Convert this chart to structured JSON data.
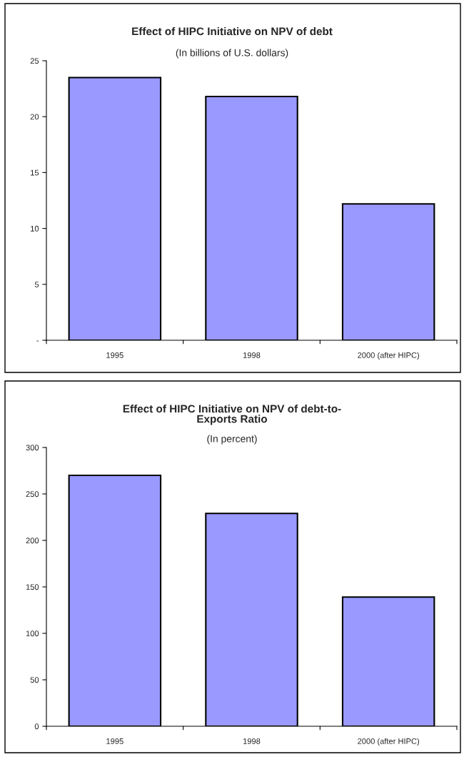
{
  "chart_data": [
    {
      "type": "bar",
      "title": "Effect of HIPC Initiative on NPV of debt",
      "subtitle": "(In billions of U.S. dollars)",
      "categories": [
        "1995",
        "1998",
        "2000 (after HIPC)"
      ],
      "values": [
        23.5,
        21.8,
        12.2
      ],
      "color": "#9999ff",
      "ylim": [
        0,
        25
      ],
      "yticks": [
        {
          "value": 0,
          "label": "-"
        },
        5,
        10,
        15,
        20,
        25
      ],
      "grid": false,
      "legend": false
    },
    {
      "type": "bar",
      "title": "Effect of HIPC Initiative on NPV of debt-to-\nExports Ratio",
      "subtitle": "(In percent)",
      "categories": [
        "1995",
        "1998",
        "2000 (after HIPC)"
      ],
      "values": [
        270,
        229,
        139
      ],
      "color": "#9999ff",
      "ylim": [
        0,
        300
      ],
      "yticks": [
        0,
        50,
        100,
        150,
        200,
        250,
        300
      ],
      "grid": false,
      "legend": false
    }
  ]
}
